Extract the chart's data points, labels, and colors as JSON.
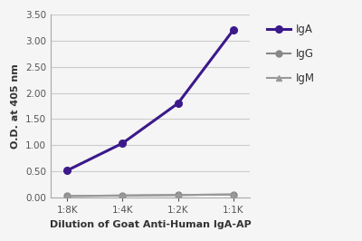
{
  "x_labels": [
    "1:8K",
    "1:4K",
    "1:2K",
    "1:1K"
  ],
  "x_values": [
    1,
    2,
    3,
    4
  ],
  "IgA_values": [
    0.52,
    1.04,
    1.8,
    3.2
  ],
  "IgG_values": [
    0.03,
    0.04,
    0.05,
    0.06
  ],
  "IgM_values": [
    0.03,
    0.04,
    0.05,
    0.06
  ],
  "IgA_color": "#3b198a",
  "IgG_color": "#888888",
  "IgM_color": "#999999",
  "ylabel": "O.D. at 405 nm",
  "xlabel": "Dilution of Goat Anti-Human IgA-AP",
  "ylim": [
    0.0,
    3.5
  ],
  "yticks": [
    0.0,
    0.5,
    1.0,
    1.5,
    2.0,
    2.5,
    3.0,
    3.5
  ],
  "background_color": "#f5f5f5",
  "plot_bg_color": "#f5f5f5",
  "grid_color": "#cccccc",
  "spine_color": "#aaaaaa"
}
